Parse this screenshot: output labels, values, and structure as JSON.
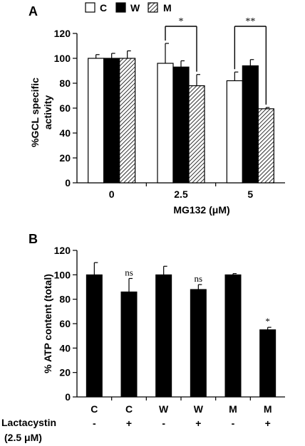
{
  "chart_data": [
    {
      "type": "bar",
      "panel_label": "A",
      "categories": [
        "0",
        "2.5",
        "5"
      ],
      "xlabel": "MG132 (μM)",
      "ylabel": "%GCL specific activity",
      "ylabel_lines": [
        "%GCL specific",
        "activity"
      ],
      "ylim": [
        0,
        120
      ],
      "yticks": [
        "0",
        "20",
        "40",
        "60",
        "80",
        "100",
        "120"
      ],
      "legend_position": "top",
      "series": [
        {
          "name": "C",
          "fill": "white",
          "values": [
            100,
            96,
            82
          ],
          "errors": [
            3,
            16,
            7
          ]
        },
        {
          "name": "W",
          "fill": "black",
          "values": [
            100,
            93,
            94
          ],
          "errors": [
            4,
            5,
            5
          ]
        },
        {
          "name": "M",
          "fill": "hatched",
          "values": [
            100,
            78,
            59.5
          ],
          "errors": [
            6,
            9,
            1
          ]
        }
      ],
      "annotations": [
        {
          "text": "*",
          "between": [
            "C 2.5",
            "M 2.5"
          ]
        },
        {
          "text": "**",
          "between": [
            "C 5",
            "M 5"
          ]
        }
      ]
    },
    {
      "type": "bar",
      "panel_label": "B",
      "categories": [
        "C",
        "C",
        "W",
        "W",
        "M",
        "M"
      ],
      "treatment_label": "Lactacystin",
      "treatment_label_2": "(2.5 μM)",
      "treatment": [
        "-",
        "+",
        "-",
        "+",
        "-",
        "+"
      ],
      "ylabel": "% ATP content (total)",
      "ylim": [
        0,
        120
      ],
      "yticks": [
        "0",
        "20",
        "40",
        "60",
        "80",
        "100",
        "120"
      ],
      "series": [
        {
          "values": [
            100,
            86,
            100,
            88,
            100,
            55
          ],
          "errors": [
            10,
            11,
            7,
            4,
            1,
            2
          ]
        }
      ],
      "bar_labels": [
        "",
        "ns",
        "",
        "ns",
        "",
        "*"
      ]
    }
  ],
  "colors": {
    "bar_black": "#000000",
    "bar_white": "#ffffff",
    "axis": "#000000"
  }
}
